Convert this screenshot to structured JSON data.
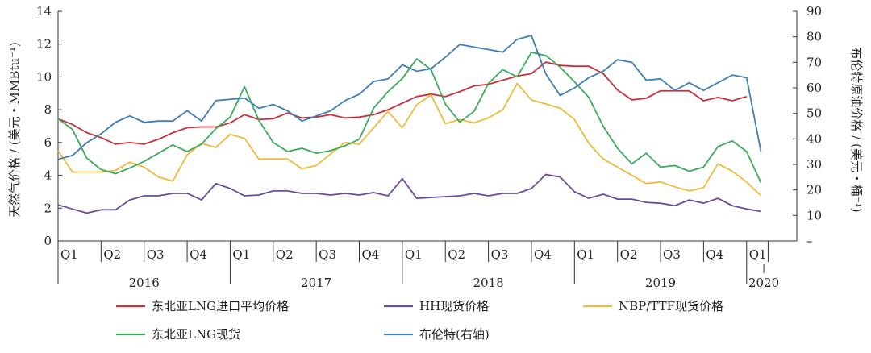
{
  "chart_data": {
    "type": "line",
    "title": "",
    "ylabel_left": "天然气价格 / (美元・MMBtu⁻¹)",
    "ylabel_right": "布伦特原油价格 / (美元・桶⁻¹)",
    "ylim_left": [
      0,
      14
    ],
    "yticks_left": [
      "0",
      "2",
      "4",
      "6",
      "8",
      "10",
      "12",
      "14"
    ],
    "ylim_right": [
      0,
      90
    ],
    "yticks_right": [
      "–",
      "10",
      "20",
      "30",
      "40",
      "50",
      "60",
      "70",
      "80",
      "90"
    ],
    "x_range": [
      0,
      51.5
    ],
    "quarter_labels": [
      "Q1",
      "Q2",
      "Q3",
      "Q4",
      "Q1",
      "Q2",
      "Q3",
      "Q4",
      "Q1",
      "Q2",
      "Q3",
      "Q4",
      "Q1",
      "Q2",
      "Q3",
      "Q4",
      "Q1"
    ],
    "years": [
      "2016",
      "2017",
      "2018",
      "2019",
      "2020"
    ],
    "series": [
      {
        "name": "东北亚LNG进口平均价格",
        "color": "#c8313a",
        "axis": "left",
        "values": [
          7.45,
          7.1,
          6.6,
          6.3,
          5.9,
          6.0,
          5.9,
          6.2,
          6.6,
          6.9,
          6.95,
          6.95,
          7.2,
          7.7,
          7.4,
          7.45,
          7.8,
          7.5,
          7.55,
          7.7,
          7.5,
          7.55,
          7.7,
          8.0,
          8.4,
          8.8,
          8.95,
          8.8,
          9.1,
          9.45,
          9.55,
          9.8,
          10.05,
          10.2,
          10.9,
          10.7,
          10.65,
          10.65,
          10.2,
          9.2,
          8.6,
          8.7,
          9.15,
          9.15,
          9.15,
          8.55,
          8.75,
          8.55,
          8.8
        ]
      },
      {
        "name": "HH现货价格",
        "color": "#6a4c9c",
        "axis": "left",
        "values": [
          2.2,
          1.95,
          1.7,
          1.9,
          1.9,
          2.5,
          2.75,
          2.75,
          2.9,
          2.9,
          2.5,
          3.5,
          3.2,
          2.75,
          2.8,
          3.05,
          3.05,
          2.9,
          2.9,
          2.8,
          2.9,
          2.8,
          2.95,
          2.75,
          3.8,
          2.6,
          2.65,
          2.7,
          2.75,
          2.9,
          2.75,
          2.9,
          2.9,
          3.2,
          4.05,
          3.9,
          3.0,
          2.6,
          2.85,
          2.55,
          2.55,
          2.35,
          2.3,
          2.15,
          2.5,
          2.3,
          2.6,
          2.15,
          1.95,
          1.8
        ]
      },
      {
        "name": "NBP/TTF现货价格",
        "color": "#f0b93a",
        "axis": "left",
        "values": [
          5.5,
          4.2,
          4.2,
          4.2,
          4.3,
          4.8,
          4.5,
          3.9,
          3.65,
          5.25,
          5.95,
          5.7,
          6.5,
          6.25,
          5.0,
          5.0,
          5.0,
          4.4,
          4.6,
          5.3,
          6.0,
          5.9,
          6.9,
          7.9,
          6.9,
          8.3,
          8.9,
          7.15,
          7.4,
          7.2,
          7.5,
          8.0,
          9.6,
          8.6,
          8.35,
          8.1,
          7.4,
          5.95,
          5.0,
          4.5,
          4.0,
          3.5,
          3.6,
          3.3,
          3.05,
          3.25,
          4.7,
          4.25,
          3.6,
          2.75
        ]
      },
      {
        "name": "东北亚LNG现货",
        "color": "#3bab5a",
        "axis": "left",
        "values": [
          7.45,
          6.8,
          5.05,
          4.35,
          4.1,
          4.45,
          4.85,
          5.35,
          5.85,
          5.45,
          5.9,
          6.85,
          7.55,
          9.4,
          7.35,
          6.0,
          5.45,
          5.65,
          5.35,
          5.5,
          5.8,
          6.2,
          8.1,
          9.1,
          9.9,
          11.1,
          10.45,
          8.35,
          7.25,
          7.9,
          9.6,
          10.45,
          10.0,
          11.5,
          11.3,
          10.6,
          9.7,
          8.75,
          7.0,
          5.65,
          4.7,
          5.35,
          4.5,
          4.6,
          4.25,
          4.5,
          5.75,
          6.1,
          5.45,
          3.55
        ]
      },
      {
        "name": "布伦特(右轴)",
        "color": "#3f7fb5",
        "axis": "right",
        "values": [
          32,
          33.5,
          38.5,
          42,
          46.5,
          49,
          46.5,
          47,
          47,
          51,
          47,
          55,
          55.5,
          56,
          52,
          53.5,
          51,
          47,
          49,
          51,
          55,
          57.5,
          62.5,
          63.5,
          69,
          66.5,
          67.5,
          72,
          77,
          76,
          75,
          74,
          79,
          80.5,
          65.5,
          57,
          60,
          64,
          66.5,
          71,
          70,
          63,
          63.5,
          59,
          62,
          59,
          62,
          65,
          64,
          35
        ]
      }
    ],
    "legend": [
      [
        "东北亚LNG进口平均价格",
        "HH现货价格",
        "NBP/TTF现货价格"
      ],
      [
        "东北亚LNG现货",
        "布伦特(右轴)"
      ]
    ]
  }
}
